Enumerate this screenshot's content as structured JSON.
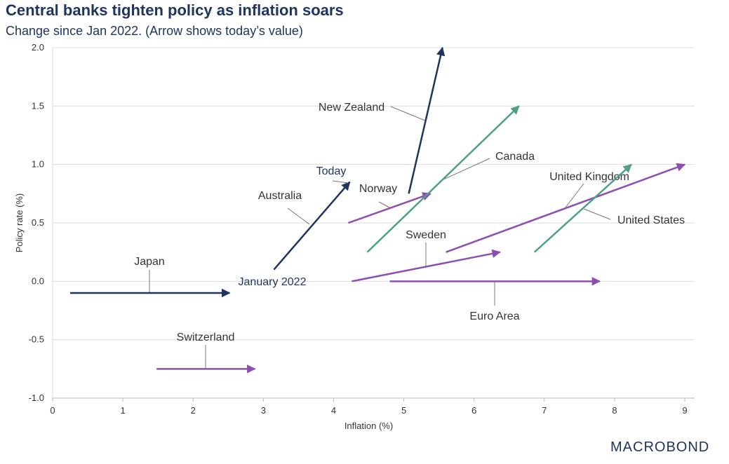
{
  "chart_data": {
    "type": "scatter",
    "title": "Central banks tighten policy as inflation soars",
    "subtitle": "Change since Jan 2022. (Arrow shows today’s value)",
    "xlabel": "Inflation (%)",
    "ylabel": "Policy rate (%)",
    "xlim": [
      0,
      9
    ],
    "ylim": [
      -1.0,
      2.0
    ],
    "xticks": [
      "0",
      "1",
      "2",
      "3",
      "4",
      "5",
      "6",
      "7",
      "8",
      "9"
    ],
    "yticks": [
      "2.0",
      "1.5",
      "1.0",
      "0.5",
      "0.0",
      "-0.5",
      "-1.0"
    ],
    "grid": "horizontal",
    "colors": {
      "navy": "#1f3560",
      "green": "#4fa08b",
      "purple": "#8e4fb0"
    },
    "series": [
      {
        "name": "Japan",
        "color": "#1f3560",
        "start": [
          0.25,
          -0.1
        ],
        "end": [
          2.52,
          -0.1
        ]
      },
      {
        "name": "Switzerland",
        "color": "#8e4fb0",
        "start": [
          1.48,
          -0.75
        ],
        "end": [
          2.88,
          -0.75
        ]
      },
      {
        "name": "Australia",
        "color": "#1f3560",
        "start": [
          3.15,
          0.1
        ],
        "end": [
          4.23,
          0.85
        ]
      },
      {
        "name": "New Zealand",
        "color": "#1f3560",
        "start": [
          5.07,
          0.75
        ],
        "end": [
          5.55,
          2.0
        ]
      },
      {
        "name": "Norway",
        "color": "#8e4fb0",
        "start": [
          4.21,
          0.5
        ],
        "end": [
          5.38,
          0.75
        ]
      },
      {
        "name": "Canada",
        "color": "#4fa08b",
        "start": [
          4.48,
          0.25
        ],
        "end": [
          6.64,
          1.5
        ]
      },
      {
        "name": "Sweden",
        "color": "#8e4fb0",
        "start": [
          4.26,
          0.0
        ],
        "end": [
          6.37,
          0.25
        ]
      },
      {
        "name": "Euro Area",
        "color": "#8e4fb0",
        "start": [
          4.8,
          0.0
        ],
        "end": [
          7.79,
          0.0
        ]
      },
      {
        "name": "United Kingdom",
        "color": "#8e4fb0",
        "start": [
          5.6,
          0.25
        ],
        "end": [
          9.0,
          1.0
        ]
      },
      {
        "name": "United States",
        "color": "#4fa08b",
        "start": [
          6.86,
          0.25
        ],
        "end": [
          8.24,
          1.0
        ]
      }
    ],
    "annotations": {
      "today": "Today",
      "start": "January 2022"
    }
  },
  "logo": "MACROBOND"
}
